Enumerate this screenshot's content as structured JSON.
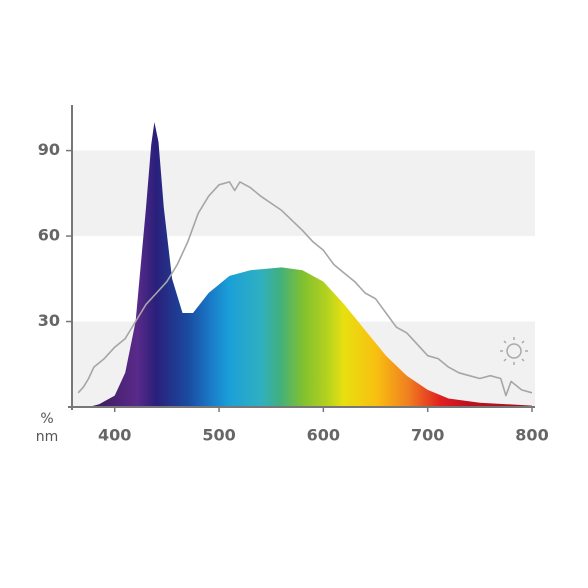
{
  "chart_data": {
    "type": "line",
    "x_label": "nm",
    "y_label": "%",
    "xlim": [
      360,
      800
    ],
    "ylim": [
      0,
      106
    ],
    "xticks": [
      400,
      500,
      600,
      700,
      800
    ],
    "yticks": [
      30,
      60,
      90
    ],
    "series": [
      {
        "filled": true,
        "x": [
          375,
          385,
          400,
          410,
          420,
          430,
          435,
          438,
          442,
          447,
          455,
          465,
          475,
          490,
          510,
          530,
          560,
          580,
          600,
          620,
          640,
          660,
          680,
          700,
          720,
          750,
          800
        ],
        "values": [
          0,
          1,
          4,
          12,
          30,
          70,
          92,
          100,
          93,
          70,
          45,
          33,
          33,
          40,
          46,
          48,
          49,
          48,
          44,
          36,
          27,
          18,
          11,
          6,
          3,
          1.5,
          0.5
        ]
      },
      {
        "filled": false,
        "color": "#a6a6a6",
        "x": [
          365,
          370,
          375,
          380,
          390,
          400,
          410,
          420,
          430,
          440,
          450,
          460,
          470,
          480,
          490,
          500,
          510,
          515,
          520,
          530,
          540,
          560,
          580,
          590,
          600,
          610,
          620,
          630,
          640,
          650,
          660,
          670,
          680,
          690,
          700,
          710,
          720,
          730,
          740,
          750,
          760,
          770,
          775,
          780,
          790,
          800
        ],
        "values": [
          5,
          7,
          10,
          14,
          17,
          21,
          24,
          30,
          36,
          40,
          44,
          50,
          58,
          68,
          74,
          78,
          79,
          76,
          79,
          77,
          74,
          69,
          62,
          58,
          55,
          50,
          47,
          44,
          40,
          38,
          33,
          28,
          26,
          22,
          18,
          17,
          14,
          12,
          11,
          10,
          11,
          10,
          4,
          9,
          6,
          5
        ]
      }
    ]
  }
}
